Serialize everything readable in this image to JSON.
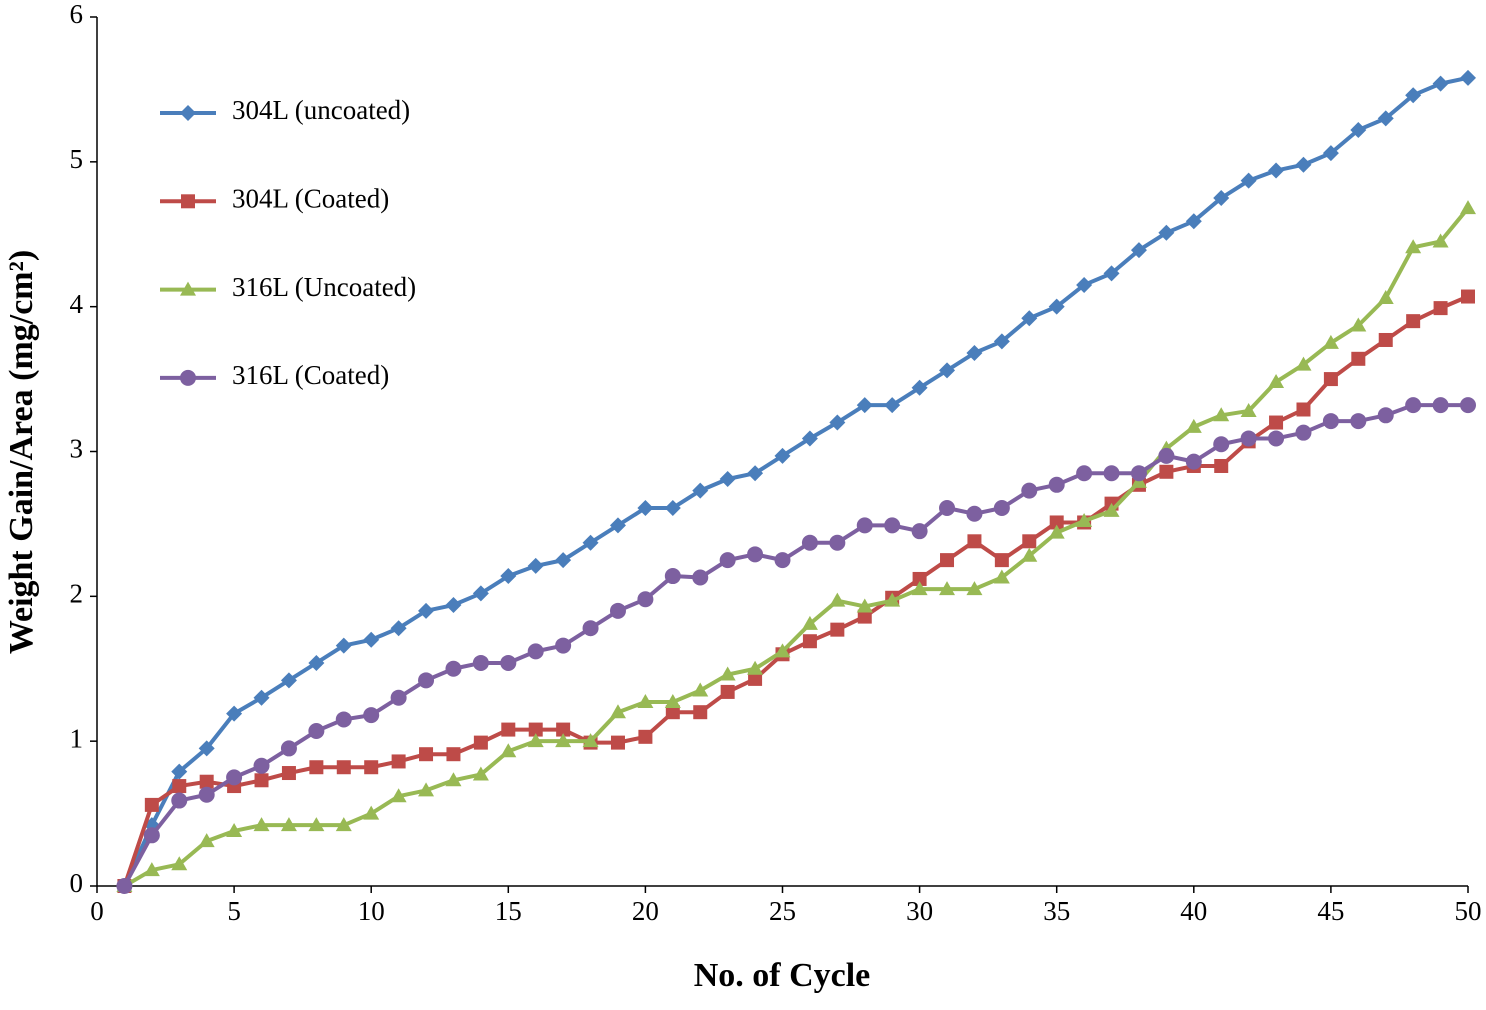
{
  "chart_data": {
    "type": "line",
    "xlabel": "No. of Cycle",
    "ylabel": "Weight Gain/Area (mg/cm²)",
    "x": [
      1,
      2,
      3,
      4,
      5,
      6,
      7,
      8,
      9,
      10,
      11,
      12,
      13,
      14,
      15,
      16,
      17,
      18,
      19,
      20,
      21,
      22,
      23,
      24,
      25,
      26,
      27,
      28,
      29,
      30,
      31,
      32,
      33,
      34,
      35,
      36,
      37,
      38,
      39,
      40,
      41,
      42,
      43,
      44,
      45,
      46,
      47,
      48,
      49,
      50
    ],
    "series": [
      {
        "name": "304L (uncoated)",
        "color": "#4a7ebb",
        "marker": "diamond",
        "values": [
          0,
          0.42,
          0.79,
          0.95,
          1.19,
          1.3,
          1.42,
          1.54,
          1.66,
          1.7,
          1.78,
          1.9,
          1.94,
          2.02,
          2.14,
          2.21,
          2.25,
          2.37,
          2.49,
          2.61,
          2.61,
          2.73,
          2.81,
          2.85,
          2.97,
          3.09,
          3.2,
          3.32,
          3.32,
          3.44,
          3.56,
          3.68,
          3.76,
          3.92,
          4.0,
          4.15,
          4.23,
          4.39,
          4.51,
          4.59,
          4.75,
          4.87,
          4.94,
          4.98,
          5.06,
          5.22,
          5.3,
          5.46,
          5.54,
          5.58
        ]
      },
      {
        "name": "304L (Coated)",
        "color": "#be4b48",
        "marker": "square",
        "values": [
          0,
          0.56,
          0.69,
          0.72,
          0.69,
          0.73,
          0.78,
          0.82,
          0.82,
          0.82,
          0.86,
          0.91,
          0.91,
          0.99,
          1.08,
          1.08,
          1.08,
          0.99,
          0.99,
          1.03,
          1.2,
          1.2,
          1.34,
          1.43,
          1.6,
          1.69,
          1.77,
          1.86,
          1.99,
          2.12,
          2.25,
          2.38,
          2.25,
          2.38,
          2.51,
          2.51,
          2.64,
          2.77,
          2.86,
          2.9,
          2.9,
          3.07,
          3.2,
          3.29,
          3.5,
          3.64,
          3.77,
          3.9,
          3.99,
          4.07
        ]
      },
      {
        "name": "316L (Uncoated)",
        "color": "#98b954",
        "marker": "triangle",
        "values": [
          0,
          0.11,
          0.15,
          0.31,
          0.38,
          0.42,
          0.42,
          0.42,
          0.42,
          0.5,
          0.62,
          0.66,
          0.73,
          0.77,
          0.93,
          1.0,
          1.0,
          1.0,
          1.2,
          1.27,
          1.27,
          1.35,
          1.46,
          1.5,
          1.62,
          1.81,
          1.97,
          1.93,
          1.97,
          2.05,
          2.05,
          2.05,
          2.13,
          2.28,
          2.44,
          2.52,
          2.59,
          2.79,
          3.02,
          3.17,
          3.25,
          3.28,
          3.48,
          3.6,
          3.75,
          3.87,
          4.06,
          4.41,
          4.45,
          4.68
        ]
      },
      {
        "name": "316L (Coated)",
        "color": "#7d60a0",
        "marker": "circle",
        "values": [
          0,
          0.35,
          0.59,
          0.63,
          0.75,
          0.83,
          0.95,
          1.07,
          1.15,
          1.18,
          1.3,
          1.42,
          1.5,
          1.54,
          1.54,
          1.62,
          1.66,
          1.78,
          1.9,
          1.98,
          2.14,
          2.13,
          2.25,
          2.29,
          2.25,
          2.37,
          2.37,
          2.49,
          2.49,
          2.45,
          2.61,
          2.57,
          2.61,
          2.73,
          2.77,
          2.85,
          2.85,
          2.85,
          2.97,
          2.93,
          3.05,
          3.09,
          3.09,
          3.13,
          3.21,
          3.21,
          3.25,
          3.32,
          3.32,
          3.32
        ]
      }
    ],
    "xlim": [
      0,
      50
    ],
    "xticks": [
      0,
      5,
      10,
      15,
      20,
      25,
      30,
      35,
      40,
      45,
      50
    ],
    "ylim": [
      0,
      6
    ],
    "yticks": [
      0,
      1,
      2,
      3,
      4,
      5,
      6
    ],
    "grid": false,
    "legend": "upper left"
  }
}
